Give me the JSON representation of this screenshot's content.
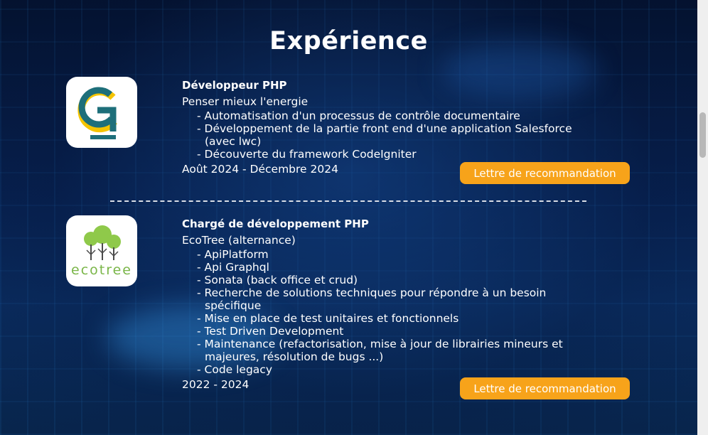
{
  "section": {
    "title": "Expérience"
  },
  "experiences": [
    {
      "title": "Développeur PHP",
      "company": "Penser mieux l'energie",
      "tasks": [
        "- Automatisation d'un processus de contrôle documentaire",
        "- Développement de la partie front end d'une application Salesforce (avec lwc)",
        "- Découverte du framework CodeIgniter"
      ],
      "dates": "Août 2024 - Décembre 2024",
      "button_label": "Lettre de recommandation",
      "logo_icon": "pme-logo-icon"
    },
    {
      "title": "Chargé de développement PHP",
      "company": "EcoTree (alternance)",
      "tasks": [
        "- ApiPlatform",
        "- Api Graphql",
        "- Sonata (back office et crud)",
        "- Recherche de solutions techniques pour répondre à un besoin spécifique",
        "- Mise en place de test unitaires et fonctionnels",
        "- Test Driven Development",
        "- Maintenance (refactorisation, mise à jour de librairies mineurs et majeures, résolution de bugs ...)",
        "- Code legacy"
      ],
      "dates": "2022 - 2024",
      "button_label": "Lettre de recommandation",
      "logo_icon": "ecotree-logo-icon",
      "logo_text": "ecotree"
    }
  ],
  "colors": {
    "accent": "#f7a31a",
    "logo_teal": "#1e6f7a",
    "logo_yellow": "#f5c400",
    "ecotree_green": "#8fc94a"
  }
}
